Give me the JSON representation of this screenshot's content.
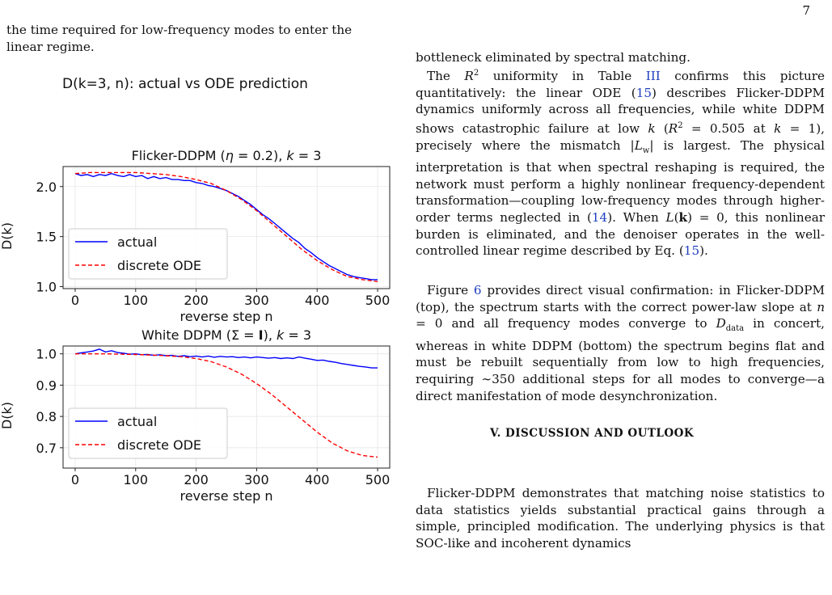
{
  "page_number": "7",
  "left_intro": {
    "line1": "the time required for low-frequency modes to enter the",
    "line2": "linear regime."
  },
  "figure_title": "D(k=3, n): actual vs ODE prediction",
  "chart_data": [
    {
      "type": "line",
      "title": "Flicker-DDPM (η = 0.2), k = 3",
      "title_parts": {
        "pre": "Flicker-DDPM (",
        "eta": "η",
        "eta_eq": " = 0.2), ",
        "k": "k",
        "k_eq": " = 3"
      },
      "xlabel": "reverse step n",
      "ylabel": "D(k)",
      "xlim": [
        -20,
        520
      ],
      "ylim": [
        0.98,
        2.2
      ],
      "xticks": [
        "0",
        "100",
        "200",
        "300",
        "400",
        "500"
      ],
      "xtick_values": [
        0,
        100,
        200,
        300,
        400,
        500
      ],
      "yticks": [
        "1.0",
        "1.5",
        "2.0"
      ],
      "ytick_values": [
        1.0,
        1.5,
        2.0
      ],
      "grid": true,
      "legend": "lower-left",
      "series": [
        {
          "name": "actual",
          "color": "#0000ff",
          "style": "solid",
          "x": [
            0,
            10,
            20,
            30,
            40,
            50,
            60,
            70,
            80,
            90,
            100,
            110,
            120,
            130,
            140,
            150,
            160,
            170,
            180,
            190,
            200,
            210,
            220,
            230,
            240,
            250,
            260,
            270,
            280,
            290,
            300,
            310,
            320,
            330,
            340,
            350,
            360,
            370,
            380,
            390,
            400,
            410,
            420,
            430,
            440,
            450,
            460,
            470,
            480,
            490,
            500
          ],
          "y": [
            2.13,
            2.11,
            2.12,
            2.1,
            2.12,
            2.11,
            2.13,
            2.11,
            2.1,
            2.12,
            2.1,
            2.11,
            2.08,
            2.1,
            2.08,
            2.09,
            2.07,
            2.07,
            2.06,
            2.06,
            2.04,
            2.03,
            2.01,
            2.0,
            1.98,
            1.96,
            1.93,
            1.9,
            1.86,
            1.82,
            1.77,
            1.72,
            1.68,
            1.63,
            1.58,
            1.53,
            1.48,
            1.44,
            1.38,
            1.34,
            1.29,
            1.25,
            1.21,
            1.18,
            1.15,
            1.12,
            1.1,
            1.09,
            1.08,
            1.07,
            1.07
          ]
        },
        {
          "name": "discrete ODE",
          "color": "#ff0000",
          "style": "dashed",
          "x": [
            0,
            25,
            50,
            75,
            100,
            125,
            150,
            175,
            200,
            225,
            250,
            275,
            300,
            325,
            350,
            375,
            400,
            425,
            450,
            475,
            500
          ],
          "y": [
            2.13,
            2.14,
            2.14,
            2.14,
            2.14,
            2.13,
            2.12,
            2.1,
            2.07,
            2.03,
            1.96,
            1.87,
            1.76,
            1.63,
            1.5,
            1.37,
            1.26,
            1.17,
            1.1,
            1.07,
            1.05
          ]
        }
      ]
    },
    {
      "type": "line",
      "title": "White DDPM (Σ = I), k = 3",
      "title_parts": {
        "pre": "White DDPM (Σ = ",
        "bold": "I",
        "post": "), ",
        "k": "k",
        "k_eq": " = 3"
      },
      "xlabel": "reverse step n",
      "ylabel": "D(k)",
      "xlim": [
        -20,
        520
      ],
      "ylim": [
        0.635,
        1.025
      ],
      "xticks": [
        "0",
        "100",
        "200",
        "300",
        "400",
        "500"
      ],
      "xtick_values": [
        0,
        100,
        200,
        300,
        400,
        500
      ],
      "yticks": [
        "0.7",
        "0.8",
        "0.9",
        "1.0"
      ],
      "ytick_values": [
        0.7,
        0.8,
        0.9,
        1.0
      ],
      "grid": true,
      "legend": "lower-left",
      "series": [
        {
          "name": "actual",
          "color": "#0000ff",
          "style": "solid",
          "x": [
            0,
            10,
            20,
            30,
            40,
            50,
            60,
            70,
            80,
            90,
            100,
            110,
            120,
            130,
            140,
            150,
            160,
            170,
            180,
            190,
            200,
            210,
            220,
            230,
            240,
            250,
            260,
            270,
            280,
            290,
            300,
            310,
            320,
            330,
            340,
            350,
            360,
            370,
            380,
            390,
            400,
            410,
            420,
            430,
            440,
            450,
            460,
            470,
            480,
            490,
            500
          ],
          "y": [
            1.0,
            1.003,
            1.006,
            1.009,
            1.015,
            1.006,
            1.01,
            1.004,
            1.002,
            0.999,
            1.0,
            0.997,
            0.998,
            0.995,
            0.997,
            0.994,
            0.995,
            0.992,
            0.994,
            0.991,
            0.993,
            0.99,
            0.993,
            0.989,
            0.992,
            0.99,
            0.991,
            0.988,
            0.99,
            0.987,
            0.99,
            0.988,
            0.986,
            0.988,
            0.985,
            0.987,
            0.985,
            0.99,
            0.986,
            0.983,
            0.979,
            0.98,
            0.976,
            0.973,
            0.969,
            0.966,
            0.963,
            0.96,
            0.958,
            0.955,
            0.955
          ]
        },
        {
          "name": "discrete ODE",
          "color": "#ff0000",
          "style": "dashed",
          "x": [
            0,
            25,
            50,
            75,
            100,
            125,
            150,
            175,
            200,
            225,
            250,
            275,
            300,
            325,
            350,
            375,
            400,
            425,
            450,
            475,
            500
          ],
          "y": [
            1.0,
            1.0,
            1.0,
            0.999,
            0.998,
            0.996,
            0.994,
            0.991,
            0.985,
            0.975,
            0.958,
            0.935,
            0.905,
            0.87,
            0.83,
            0.79,
            0.75,
            0.715,
            0.69,
            0.675,
            0.67
          ]
        }
      ]
    }
  ],
  "right_column": {
    "p0": "bottleneck eliminated by spectral matching.",
    "p1": {
      "a": "The ",
      "r": "R",
      "sup": "2",
      "b": " uniformity in Table ",
      "ref1": "III",
      "c": " confirms this picture quantitatively: the linear ODE (",
      "ref2": "15",
      "d": ") describes Flicker-DDPM dynamics uniformly across all frequencies, while white DDPM shows catastrophic failure at low ",
      "k1": "k",
      "e": " (",
      "r2": "R",
      "sup2": "2",
      "f": " = 0.505 at ",
      "k2": "k",
      "g": " = 1), precisely where the mismatch |",
      "lw": "L",
      "lw_sub": "w",
      "h": "| is largest. The physical interpretation is that when spectral reshaping is required, the network must perform a highly nonlinear frequency-dependent transformation—coupling low-frequency modes through higher-order terms neglected in (",
      "ref3": "14",
      "i": "). When ",
      "L": "L",
      "kb": "k",
      "j": ") = 0, this nonlinear burden is eliminated, and the denoiser operates in the well-controlled linear regime described by Eq. (",
      "ref4": "15",
      "l": ")."
    },
    "p2": {
      "a": "Figure ",
      "ref": "6",
      "b": " provides direct visual confirmation: in Flicker-DDPM (top), the spectrum starts with the correct power-law slope at ",
      "n": "n",
      "c": " = 0 and all frequency modes converge to ",
      "D": "D",
      "dsub": "data",
      "d": " in concert, whereas in white DDPM (bottom) the spectrum begins flat and must be rebuilt sequentially from low to high frequencies, requiring ∼350 additional steps for all modes to converge—a direct manifestation of mode desynchronization."
    },
    "heading": "V.   DISCUSSION AND OUTLOOK",
    "p3": "Flicker-DDPM demonstrates that matching noise statistics to data statistics yields substantial practical gains through a simple, principled modification. The underlying physics is that SOC-like and incoherent dynamics"
  }
}
